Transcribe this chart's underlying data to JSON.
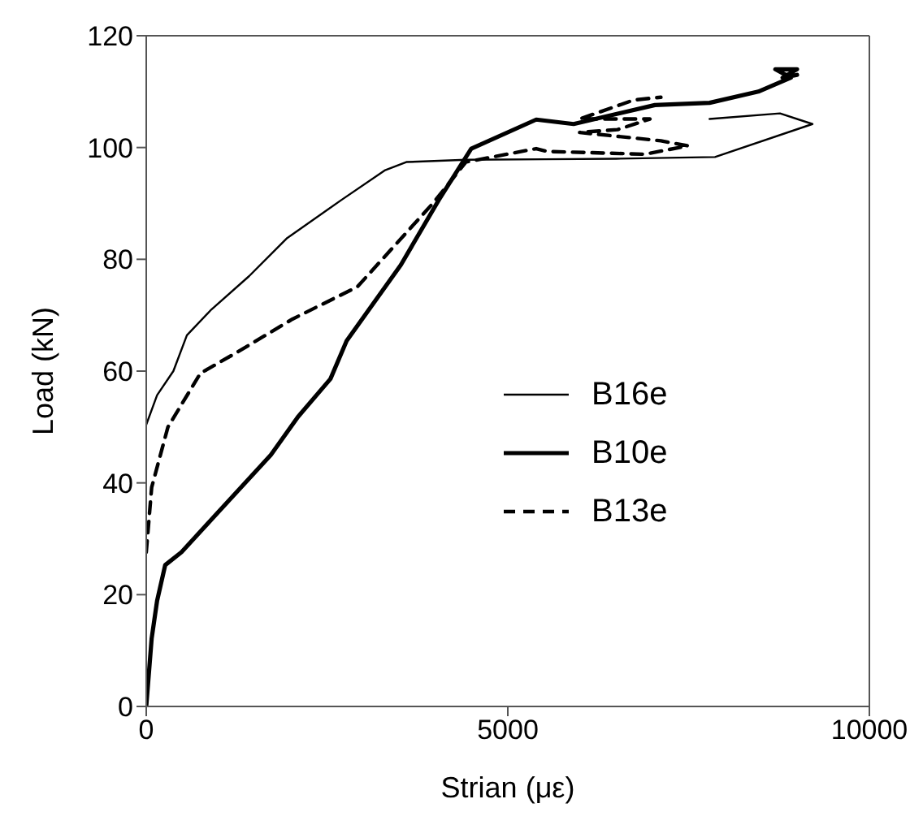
{
  "chart_data": {
    "type": "line",
    "xlabel": "Strian (με)",
    "ylabel": "Load (kN)",
    "xlim": [
      0,
      10000
    ],
    "xticks": [
      0,
      5000,
      10000
    ],
    "ylim": [
      0,
      120
    ],
    "yticks": [
      0,
      20,
      40,
      60,
      80,
      100,
      120
    ],
    "grid": false,
    "legend": "right",
    "marker": "none",
    "series": [
      {
        "name": "B16e",
        "color": "#000000",
        "line_style": "solid",
        "x": [
          0,
          150,
          375,
          562,
          899,
          1423,
          1948,
          2697,
          3296,
          3596,
          4420,
          5500,
          6500,
          7865,
          9213,
          8764,
          7790
        ],
        "values": [
          50.4,
          55.7,
          60,
          66.4,
          71,
          77,
          83.8,
          90.6,
          95.9,
          97.4,
          97.8,
          97.9,
          98,
          98.3,
          104.2,
          106.1,
          105.1
        ]
      },
      {
        "name": "B10e",
        "color": "#000000",
        "line_style": "solid",
        "x": [
          0,
          75,
          150,
          262,
          487,
          899,
          1723,
          2097,
          2547,
          2771,
          3521,
          4045,
          4494,
          5393,
          5910,
          7034,
          7790,
          8464,
          8914,
          8700,
          9000,
          8800,
          9000
        ],
        "values": [
          0,
          12.2,
          18.9,
          25.3,
          27.6,
          33.4,
          45,
          51.8,
          58.6,
          65.4,
          79,
          90.6,
          99.8,
          105,
          104.2,
          107.6,
          108,
          110,
          112.5,
          114,
          114,
          112.5,
          113
        ]
      },
      {
        "name": "B13e",
        "color": "#000000",
        "line_style": "dashed",
        "x": [
          0,
          75,
          300,
          749,
          1273,
          2022,
          2921,
          3970,
          4420,
          5393,
          5543,
          6892,
          7491,
          7117,
          5993,
          6517,
          6966,
          5993,
          6742,
          7117
        ],
        "values": [
          27.6,
          39.2,
          50,
          59.6,
          63.5,
          69.3,
          75.1,
          90.1,
          97.4,
          99.8,
          99.3,
          98.8,
          100.3,
          101.2,
          102.7,
          103.2,
          105.1,
          105.1,
          108.5,
          109
        ]
      }
    ]
  }
}
